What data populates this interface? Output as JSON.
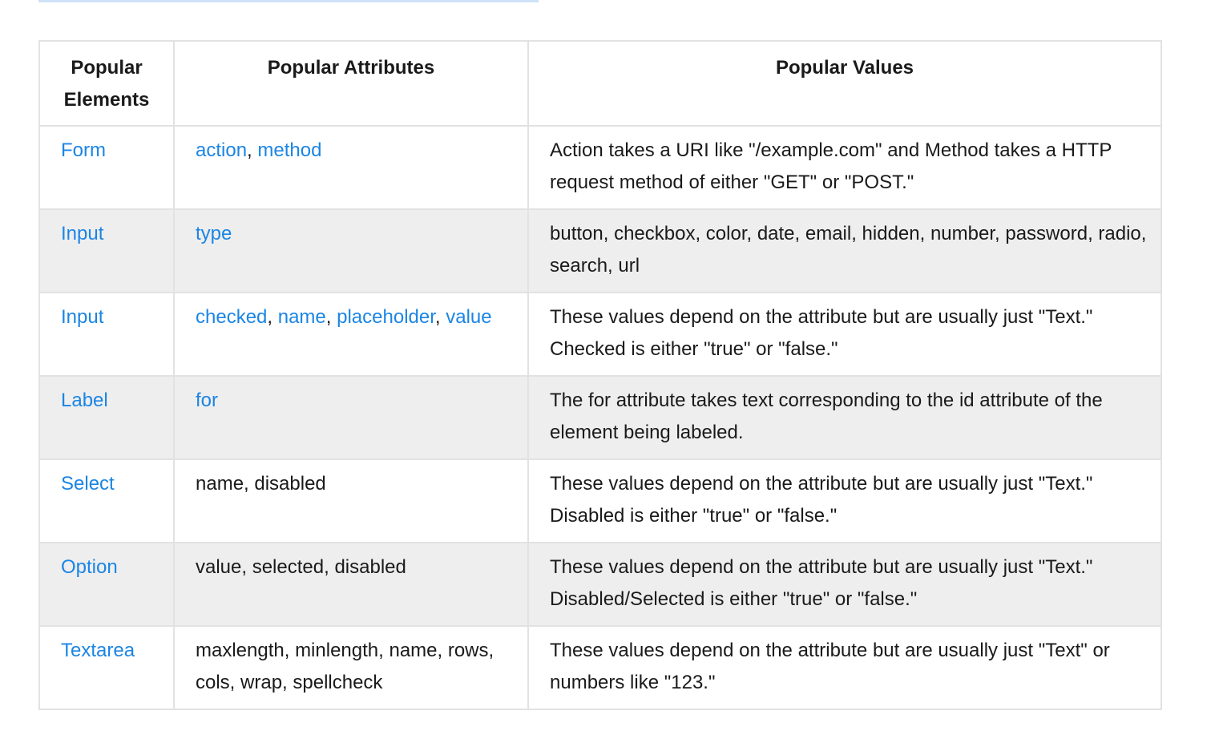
{
  "headers": {
    "elements": "Popular Elements",
    "attributes": "Popular Attributes",
    "values": "Popular Values"
  },
  "rows": [
    {
      "element": "Form",
      "attributes": [
        "action",
        "method"
      ],
      "attributes_linked": true,
      "value": "Action takes a URI like \"/example.com\" and Method takes a HTTP request method of either \"GET\" or \"POST.\""
    },
    {
      "element": "Input",
      "attributes": [
        "type"
      ],
      "attributes_linked": true,
      "value": "button, checkbox, color, date, email, hidden, number, password, radio, search, url"
    },
    {
      "element": "Input",
      "attributes": [
        "checked",
        "name",
        "placeholder",
        "value"
      ],
      "attributes_linked": true,
      "value": "These values depend on the attribute but are usually just \"Text.\" Checked is either \"true\" or \"false.\""
    },
    {
      "element": "Label",
      "attributes": [
        "for"
      ],
      "attributes_linked": true,
      "value": "The for attribute takes text corresponding to the id attribute of the element being labeled."
    },
    {
      "element": "Select",
      "attributes_text": "name, disabled",
      "attributes_linked": false,
      "value": "These values depend on the attribute but are usually just \"Text.\" Disabled is either \"true\" or \"false.\""
    },
    {
      "element": "Option",
      "attributes_text": "value, selected, disabled",
      "attributes_linked": false,
      "value": "These values depend on the attribute but are usually just \"Text.\" Disabled/Selected is either \"true\" or \"false.\""
    },
    {
      "element": "Textarea",
      "attributes_text": "maxlength, minlength, name, rows, cols, wrap, spellcheck",
      "attributes_linked": false,
      "value": "These values depend on the attribute but are usually just \"Text\" or numbers like \"123.\""
    }
  ],
  "colors": {
    "link": "#1b85e4",
    "border": "#e2e2e2",
    "stripe": "#eeeeee"
  }
}
